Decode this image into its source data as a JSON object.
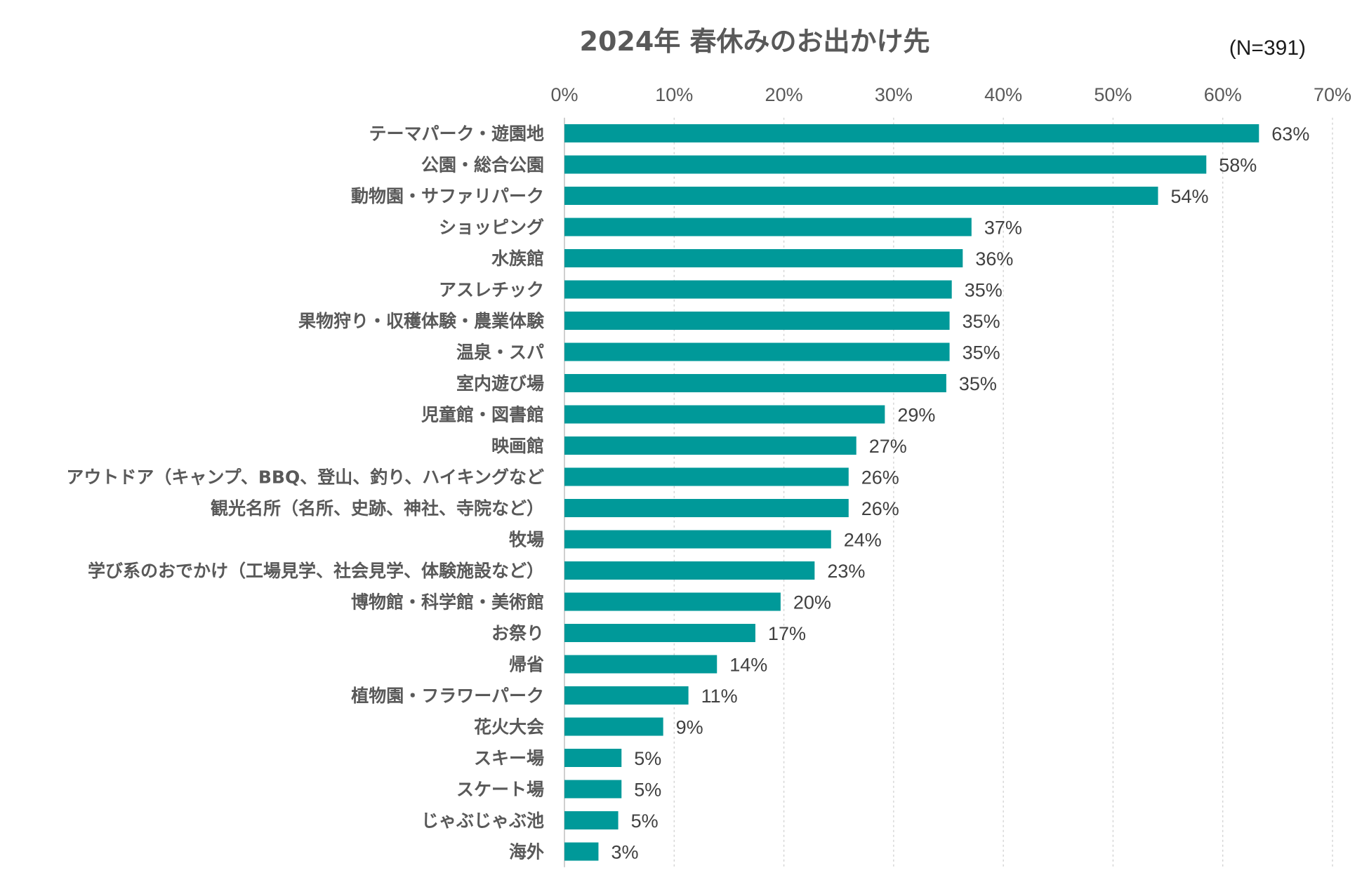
{
  "chart_data": {
    "type": "bar",
    "orientation": "horizontal",
    "title": "2024年 春休みのお出かけ先",
    "sample_note": "(N=391)",
    "xlabel": "",
    "ylabel": "",
    "xlim": [
      0,
      70
    ],
    "tick_step": 10,
    "tick_suffix": "%",
    "value_suffix": "%",
    "grid": true,
    "axis_position": "top",
    "bar_color": "#009999",
    "categories": [
      "テーマパーク・遊園地",
      "公園・総合公園",
      "動物園・サファリパーク",
      "ショッピング",
      "水族館",
      "アスレチック",
      "果物狩り・収穫体験・農業体験",
      "温泉・スパ",
      "室内遊び場",
      "児童館・図書館",
      "映画館",
      "アウトドア（キャンプ、BBQ、登山、釣り、ハイキングなど",
      "観光名所（名所、史跡、神社、寺院など）",
      "牧場",
      "学び系のおでかけ（工場見学、社会見学、体験施設など）",
      "博物館・科学館・美術館",
      "お祭り",
      "帰省",
      "植物園・フラワーパーク",
      "花火大会",
      "スキー場",
      "スケート場",
      "じゃぶじゃぶ池",
      "海外"
    ],
    "values": [
      63,
      58,
      54,
      37,
      36,
      35,
      35,
      35,
      35,
      29,
      27,
      26,
      26,
      24,
      23,
      20,
      17,
      14,
      11,
      9,
      5,
      5,
      5,
      3
    ],
    "bar_values": [
      63.3,
      58.5,
      54.1,
      37.1,
      36.3,
      35.3,
      35.1,
      35.1,
      34.8,
      29.2,
      26.6,
      25.9,
      25.9,
      24.3,
      22.8,
      19.7,
      17.4,
      13.9,
      11.3,
      9.0,
      5.2,
      5.2,
      4.9,
      3.1
    ]
  }
}
